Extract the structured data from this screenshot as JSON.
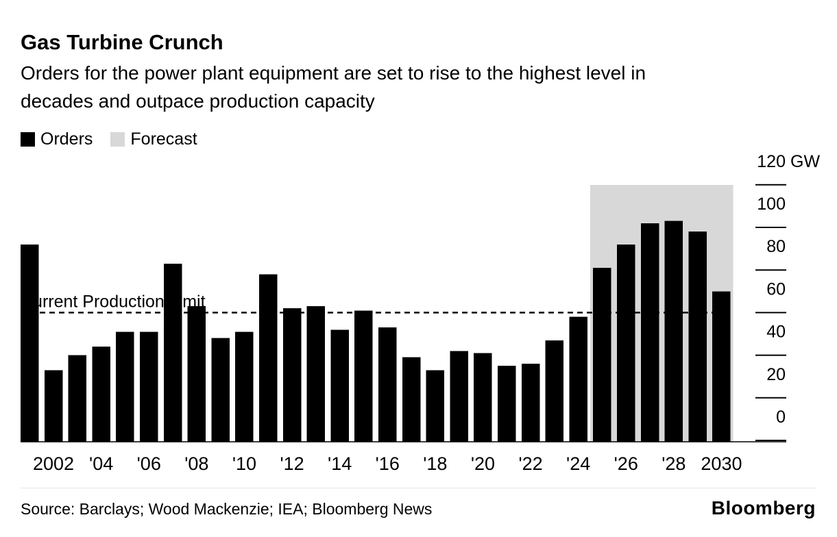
{
  "header": {
    "title": "Gas Turbine Crunch",
    "subtitle_lines": [
      "Orders for the power plant equipment are set to rise to the highest level in",
      "decades and outpace production capacity"
    ]
  },
  "legend": {
    "items": [
      {
        "label": "Orders",
        "color": "#000000"
      },
      {
        "label": "Forecast",
        "color": "#d8d8d8"
      }
    ]
  },
  "chart_data": {
    "type": "bar",
    "title": "Gas Turbine Crunch",
    "unit": "GW",
    "ylim": [
      0,
      120
    ],
    "yticks": [
      0,
      20,
      40,
      60,
      80,
      100,
      120
    ],
    "grid": false,
    "legend_position": "top-left",
    "years": [
      2001,
      2002,
      2003,
      2004,
      2005,
      2006,
      2007,
      2008,
      2009,
      2010,
      2011,
      2012,
      2013,
      2014,
      2015,
      2016,
      2017,
      2018,
      2019,
      2020,
      2021,
      2022,
      2023,
      2024,
      2025,
      2026,
      2027,
      2028,
      2029,
      2030
    ],
    "values": [
      92,
      33,
      40,
      44,
      51,
      51,
      83,
      63,
      48,
      51,
      78,
      62,
      63,
      52,
      61,
      53,
      39,
      33,
      42,
      41,
      35,
      36,
      47,
      58,
      81,
      92,
      102,
      103,
      98,
      70
    ],
    "forecast_start_year": 2025,
    "forecast_band_top": 120,
    "bar_color": "#000000",
    "forecast_color": "#d8d8d8",
    "xticks": [
      {
        "year": 2002,
        "label": "2002"
      },
      {
        "year": 2004,
        "label": "'04"
      },
      {
        "year": 2006,
        "label": "'06"
      },
      {
        "year": 2008,
        "label": "'08"
      },
      {
        "year": 2010,
        "label": "'10"
      },
      {
        "year": 2012,
        "label": "'12"
      },
      {
        "year": 2014,
        "label": "'14"
      },
      {
        "year": 2016,
        "label": "'16"
      },
      {
        "year": 2018,
        "label": "'18"
      },
      {
        "year": 2020,
        "label": "'20"
      },
      {
        "year": 2022,
        "label": "'22"
      },
      {
        "year": 2024,
        "label": "'24"
      },
      {
        "year": 2026,
        "label": "'26"
      },
      {
        "year": 2028,
        "label": "'28"
      },
      {
        "year": 2030,
        "label": "2030"
      }
    ],
    "production_limit": {
      "label": "Current Production Limit",
      "value": 60
    }
  },
  "footer": {
    "source": "Source: Barclays; Wood Mackenzie; IEA; Bloomberg News",
    "brand": "Bloomberg"
  }
}
